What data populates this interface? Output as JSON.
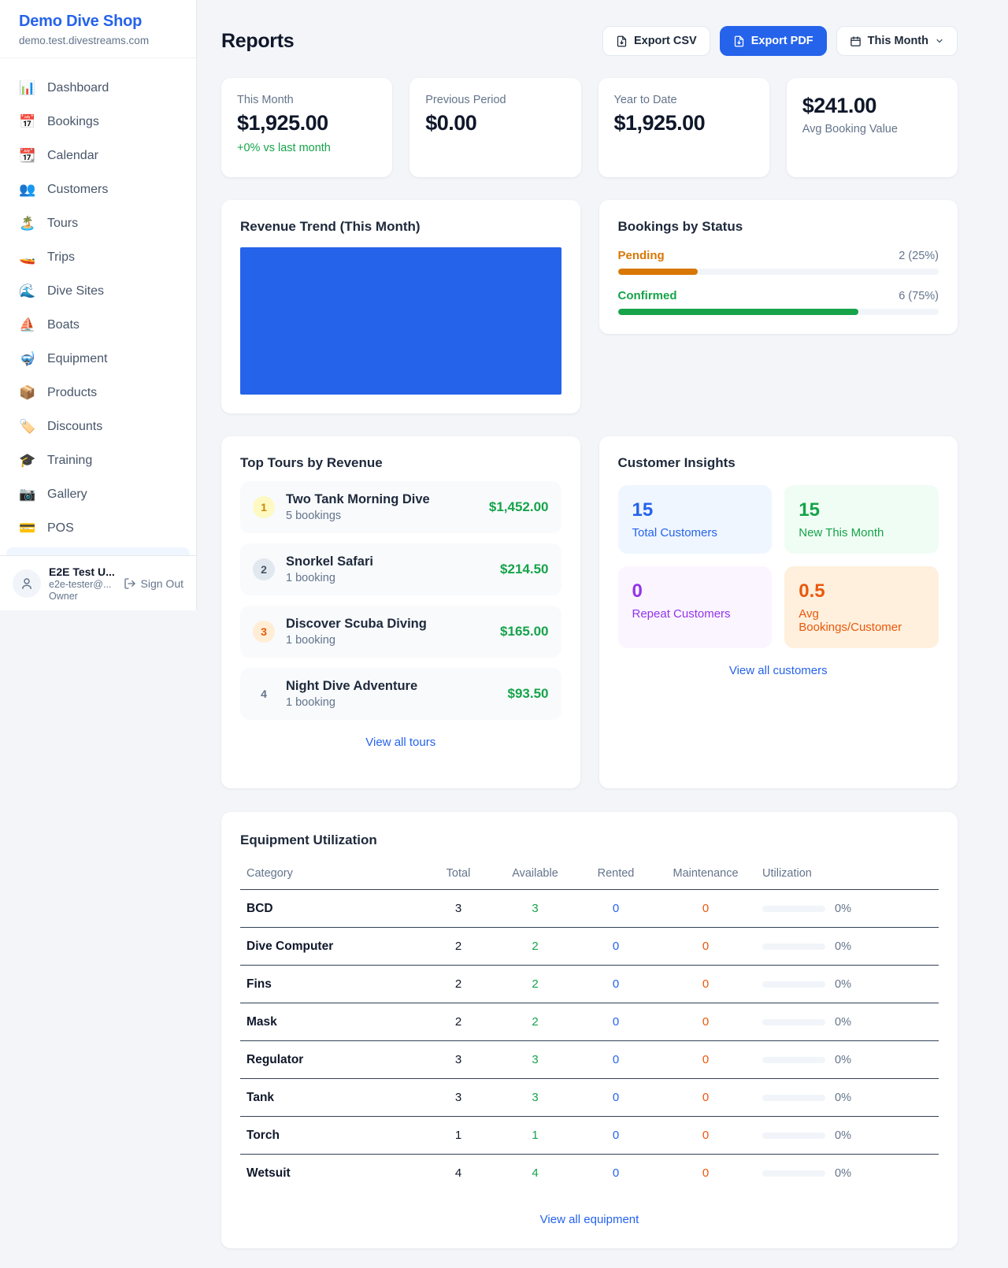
{
  "colors": {
    "accent": "#2563eb",
    "green": "#16a34a",
    "amber": "#d97706",
    "orange": "#ea580c",
    "purple": "#9333ea",
    "link": "#2563eb"
  },
  "sidebar": {
    "brand": {
      "name": "Demo Dive Shop",
      "domain": "demo.test.divestreams.com"
    },
    "nav": [
      {
        "glyph": "📊",
        "label": "Dashboard"
      },
      {
        "glyph": "📅",
        "label": "Bookings"
      },
      {
        "glyph": "📆",
        "label": "Calendar"
      },
      {
        "glyph": "👥",
        "label": "Customers"
      },
      {
        "glyph": "🏝️",
        "label": "Tours"
      },
      {
        "glyph": "🚤",
        "label": "Trips"
      },
      {
        "glyph": "🌊",
        "label": "Dive Sites"
      },
      {
        "glyph": "⛵",
        "label": "Boats"
      },
      {
        "glyph": "🤿",
        "label": "Equipment"
      },
      {
        "glyph": "📦",
        "label": "Products"
      },
      {
        "glyph": "🏷️",
        "label": "Discounts"
      },
      {
        "glyph": "🎓",
        "label": "Training"
      },
      {
        "glyph": "📷",
        "label": "Gallery"
      },
      {
        "glyph": "💳",
        "label": "POS"
      }
    ],
    "user": {
      "name": "E2E Test U...",
      "email": "e2e-tester@...",
      "role": "Owner",
      "sign_out": "Sign Out"
    }
  },
  "header": {
    "title": "Reports",
    "export_csv": "Export CSV",
    "export_pdf": "Export PDF",
    "period": "This Month"
  },
  "stats": [
    {
      "label": "This Month",
      "value": "$1,925.00",
      "delta": "+0% vs last month"
    },
    {
      "label": "Previous Period",
      "value": "$0.00"
    },
    {
      "label": "Year to Date",
      "value": "$1,925.00"
    },
    {
      "label": "Avg Booking Value",
      "value": "$241.00"
    }
  ],
  "revenue_trend": {
    "title": "Revenue Trend (This Month)",
    "fill_color": "#2563eb"
  },
  "chart_data": {
    "type": "bar",
    "title": "Bookings by Status",
    "categories": [
      "Pending",
      "Confirmed"
    ],
    "values": [
      2,
      6
    ],
    "percents": [
      25,
      75
    ],
    "value_labels": [
      "2 (25%)",
      "6 (75%)"
    ],
    "colors": [
      "#d97706",
      "#16a34a"
    ]
  },
  "bookings_by_status": {
    "title": "Bookings by Status",
    "items": [
      {
        "label": "Pending",
        "count_text": "2 (25%)",
        "percent": 25,
        "color": "#d97706"
      },
      {
        "label": "Confirmed",
        "count_text": "6 (75%)",
        "percent": 75,
        "color": "#16a34a"
      }
    ]
  },
  "top_tours": {
    "title": "Top Tours by Revenue",
    "items": [
      {
        "rank": "1",
        "name": "Two Tank Morning Dive",
        "bookings": "5 bookings",
        "amount": "$1,452.00",
        "badge_bg": "#fef9c3",
        "badge_fg": "#ca8a04"
      },
      {
        "rank": "2",
        "name": "Snorkel Safari",
        "bookings": "1 booking",
        "amount": "$214.50",
        "badge_bg": "#e2e8f0",
        "badge_fg": "#475569"
      },
      {
        "rank": "3",
        "name": "Discover Scuba Diving",
        "bookings": "1 booking",
        "amount": "$165.00",
        "badge_bg": "#ffedd5",
        "badge_fg": "#ea580c"
      },
      {
        "rank": "4",
        "name": "Night Dive Adventure",
        "bookings": "1 booking",
        "amount": "$93.50",
        "badge_bg": "transparent",
        "badge_fg": "#64748b"
      }
    ],
    "view_all": "View all tours"
  },
  "customer_insights": {
    "title": "Customer Insights",
    "tiles": [
      {
        "value": "15",
        "label": "Total Customers",
        "bg": "#eff6ff",
        "fg": "#2563eb"
      },
      {
        "value": "15",
        "label": "New This Month",
        "bg": "#f0fdf4",
        "fg": "#16a34a"
      },
      {
        "value": "0",
        "label": "Repeat Customers",
        "bg": "#faf5ff",
        "fg": "#9333ea"
      },
      {
        "value": "0.5",
        "label": "Avg Bookings/Customer",
        "bg": "#fef0dd",
        "fg": "#ea580c"
      }
    ],
    "view_all": "View all customers"
  },
  "equipment": {
    "title": "Equipment Utilization",
    "columns": [
      "Category",
      "Total",
      "Available",
      "Rented",
      "Maintenance",
      "Utilization"
    ],
    "rows": [
      {
        "category": "BCD",
        "total": "3",
        "available": "3",
        "rented": "0",
        "maintenance": "0",
        "utilization": "0%"
      },
      {
        "category": "Dive Computer",
        "total": "2",
        "available": "2",
        "rented": "0",
        "maintenance": "0",
        "utilization": "0%"
      },
      {
        "category": "Fins",
        "total": "2",
        "available": "2",
        "rented": "0",
        "maintenance": "0",
        "utilization": "0%"
      },
      {
        "category": "Mask",
        "total": "2",
        "available": "2",
        "rented": "0",
        "maintenance": "0",
        "utilization": "0%"
      },
      {
        "category": "Regulator",
        "total": "3",
        "available": "3",
        "rented": "0",
        "maintenance": "0",
        "utilization": "0%"
      },
      {
        "category": "Tank",
        "total": "3",
        "available": "3",
        "rented": "0",
        "maintenance": "0",
        "utilization": "0%"
      },
      {
        "category": "Torch",
        "total": "1",
        "available": "1",
        "rented": "0",
        "maintenance": "0",
        "utilization": "0%"
      },
      {
        "category": "Wetsuit",
        "total": "4",
        "available": "4",
        "rented": "0",
        "maintenance": "0",
        "utilization": "0%"
      }
    ],
    "view_all": "View all equipment"
  }
}
